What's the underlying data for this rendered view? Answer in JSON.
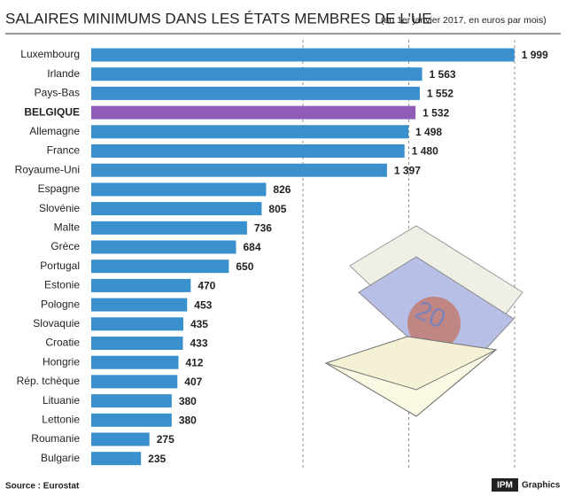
{
  "chart_data": {
    "type": "hbar",
    "title": "SALAIRES MINIMUMS DANS LES ÉTATS MEMBRES DE L'UE",
    "subtitle": "(au 1er janvier 2017, en euros par mois)",
    "categories": [
      "Luxembourg",
      "Irlande",
      "Pays-Bas",
      "BELGIQUE",
      "Allemagne",
      "France",
      "Royaume-Uni",
      "Espagne",
      "Slovénie",
      "Malte",
      "Grèce",
      "Portugal",
      "Estonie",
      "Pologne",
      "Slovaquie",
      "Croatie",
      "Hongrie",
      "Rép. tchèque",
      "Lituanie",
      "Lettonie",
      "Roumanie",
      "Bulgarie"
    ],
    "values": [
      1999,
      1563,
      1552,
      1532,
      1498,
      1480,
      1397,
      826,
      805,
      736,
      684,
      650,
      470,
      453,
      435,
      433,
      412,
      407,
      380,
      380,
      275,
      235
    ],
    "value_labels": [
      "1 999",
      "1 563",
      "1 552",
      "1 532",
      "1 498",
      "1 480",
      "1 397",
      "826",
      "805",
      "736",
      "684",
      "650",
      "470",
      "453",
      "435",
      "433",
      "412",
      "407",
      "380",
      "380",
      "275",
      "235"
    ],
    "color": "#3a8fcd",
    "highlight": {
      "index": 3,
      "color": "#8f5db7"
    },
    "xlim": [
      0,
      2000
    ],
    "grid_lines": [
      1000,
      1500,
      2000
    ],
    "source": "Source : Eurostat",
    "credit_logo": "IPM",
    "credit": "Graphics"
  }
}
